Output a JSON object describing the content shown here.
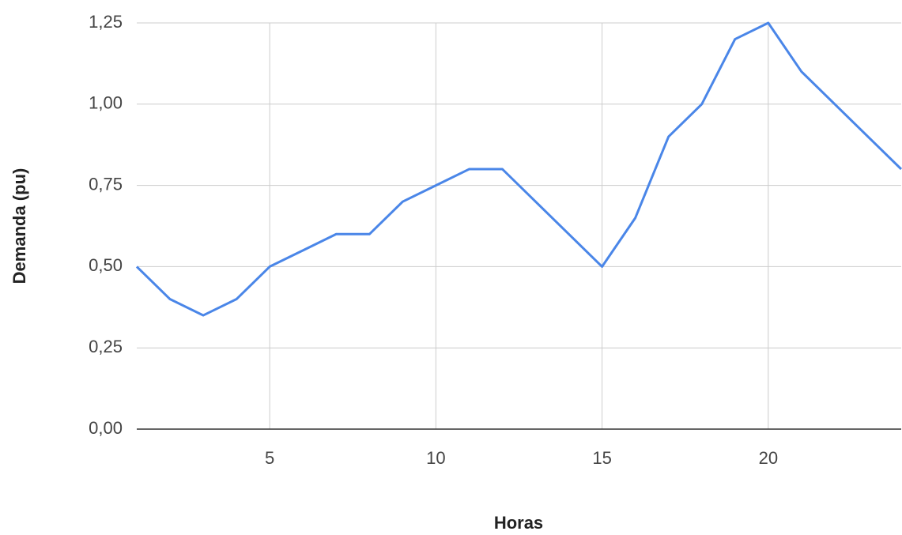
{
  "chart_data": {
    "type": "line",
    "x_label": "Horas",
    "y_label": "Demanda (pu)",
    "x": [
      1,
      2,
      3,
      4,
      5,
      6,
      7,
      8,
      9,
      10,
      11,
      12,
      13,
      14,
      15,
      16,
      17,
      18,
      19,
      20,
      21,
      22,
      23,
      24
    ],
    "values": [
      0.5,
      0.4,
      0.35,
      0.4,
      0.5,
      0.55,
      0.6,
      0.6,
      0.7,
      0.75,
      0.8,
      0.8,
      0.7,
      0.6,
      0.5,
      0.65,
      0.9,
      1.0,
      1.2,
      1.25,
      1.1,
      1.0,
      0.9,
      0.8
    ],
    "color": "#4a86e8",
    "xlim": [
      1,
      24
    ],
    "xticks": [
      5,
      10,
      15,
      20
    ],
    "ylim": [
      0,
      1.25
    ],
    "yticks": [
      {
        "value": 0,
        "label": "0,00"
      },
      {
        "value": 0.25,
        "label": "0,25"
      },
      {
        "value": 0.5,
        "label": "0,50"
      },
      {
        "value": 0.75,
        "label": "0,75"
      },
      {
        "value": 1.0,
        "label": "1,00"
      },
      {
        "value": 1.25,
        "label": "1,25"
      }
    ],
    "grid": true
  }
}
